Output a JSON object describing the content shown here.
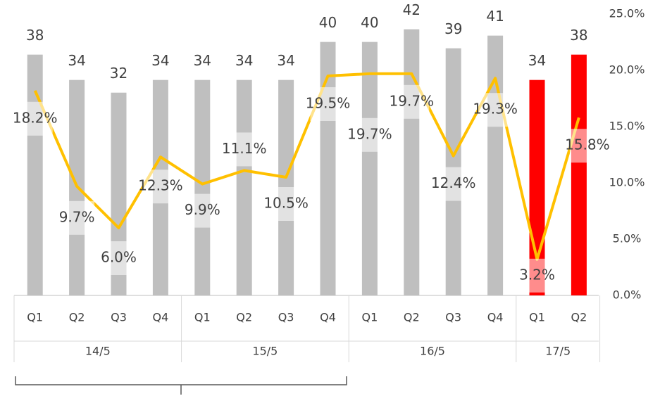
{
  "chart_data": {
    "type": "bar-line",
    "groups": [
      {
        "name": "14/5",
        "categories": [
          "Q1",
          "Q2",
          "Q3",
          "Q4"
        ]
      },
      {
        "name": "15/5",
        "categories": [
          "Q1",
          "Q2",
          "Q3",
          "Q4"
        ]
      },
      {
        "name": "16/5",
        "categories": [
          "Q1",
          "Q2",
          "Q3",
          "Q4"
        ]
      },
      {
        "name": "17/5",
        "categories": [
          "Q1",
          "Q2"
        ]
      }
    ],
    "series": [
      {
        "type": "bar",
        "colors": [
          "#bfbfbf",
          "#bfbfbf",
          "#bfbfbf",
          "#bfbfbf",
          "#bfbfbf",
          "#bfbfbf",
          "#bfbfbf",
          "#bfbfbf",
          "#bfbfbf",
          "#bfbfbf",
          "#bfbfbf",
          "#bfbfbf",
          "#ff0000",
          "#ff0000"
        ],
        "values": [
          38,
          34,
          32,
          34,
          34,
          34,
          34,
          40,
          40,
          42,
          39,
          41,
          34,
          38
        ]
      },
      {
        "type": "line",
        "axis": "y2",
        "color": "#ffc000",
        "values": [
          18.2,
          9.7,
          6.0,
          12.3,
          9.9,
          11.1,
          10.5,
          19.5,
          19.7,
          19.7,
          12.4,
          19.3,
          3.2,
          15.8
        ],
        "value_labels": [
          "18.2%",
          "9.7%",
          "6.0%",
          "12.3%",
          "9.9%",
          "11.1%",
          "10.5%",
          "19.5%",
          "19.7%",
          "19.7%",
          "12.4%",
          "19.3%",
          "3.2%",
          "15.8%"
        ]
      }
    ],
    "ylim": [
      0,
      44.4
    ],
    "y2lim": [
      0,
      25
    ],
    "y2ticks": [
      {
        "value": 0,
        "label": "0.0%"
      },
      {
        "value": 5,
        "label": "5.0%"
      },
      {
        "value": 10,
        "label": "10.0%"
      },
      {
        "value": 15,
        "label": "15.0%"
      },
      {
        "value": 20,
        "label": "20.0%"
      },
      {
        "value": 25,
        "label": "25.0%"
      }
    ]
  }
}
